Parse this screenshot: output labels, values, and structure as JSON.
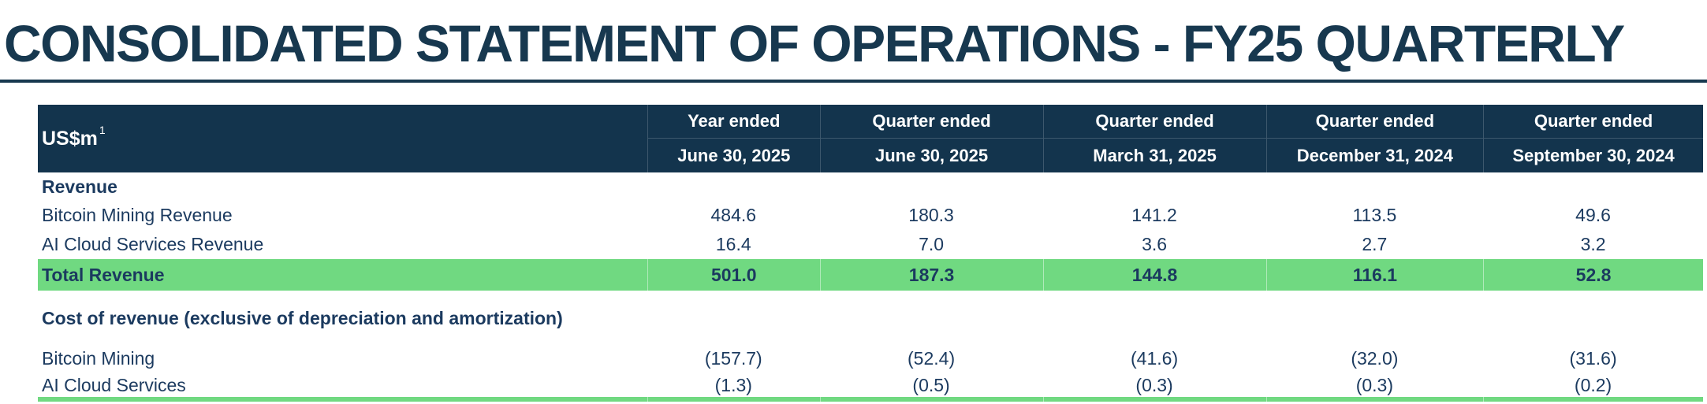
{
  "page_title": "CONSOLIDATED STATEMENT OF OPERATIONS - FY25 QUARTERLY",
  "colors": {
    "navy_header_background": "#13344d",
    "navy_title_text": "#17384f",
    "body_text_navy": "#1b3a5f",
    "highlight_green": "#70d981"
  },
  "table": {
    "unit_label": "US$m",
    "unit_footnote": "1",
    "columns": [
      {
        "line1": "Year ended",
        "line2": "June 30, 2025"
      },
      {
        "line1": "Quarter ended",
        "line2": "June 30, 2025"
      },
      {
        "line1": "Quarter ended",
        "line2": "March 31, 2025"
      },
      {
        "line1": "Quarter ended",
        "line2": "December 31, 2024"
      },
      {
        "line1": "Quarter ended",
        "line2": "September 30, 2024"
      }
    ],
    "rows": [
      {
        "type": "section",
        "name": "section-revenue",
        "label": "Revenue"
      },
      {
        "type": "data",
        "name": "row-bitcoin-mining-revenue",
        "label": "Bitcoin Mining Revenue",
        "values": [
          "484.6",
          "180.3",
          "141.2",
          "113.5",
          "49.6"
        ]
      },
      {
        "type": "data",
        "name": "row-ai-cloud-services-revenue",
        "label": "AI Cloud Services Revenue",
        "values": [
          "16.4",
          "7.0",
          "3.6",
          "2.7",
          "3.2"
        ]
      },
      {
        "type": "total",
        "name": "row-total-revenue",
        "label": "Total Revenue",
        "values": [
          "501.0",
          "187.3",
          "144.8",
          "116.1",
          "52.8"
        ]
      },
      {
        "type": "section",
        "name": "section-cost-of-revenue",
        "gap": "lg",
        "label": "Cost of revenue (exclusive of depreciation and amortization)"
      },
      {
        "type": "data",
        "name": "row-bitcoin-mining-cost",
        "label": "Bitcoin Mining",
        "gap": "sm",
        "values": [
          "(157.7)",
          "(52.4)",
          "(41.6)",
          "(32.0)",
          "(31.6)"
        ]
      },
      {
        "type": "data",
        "name": "row-ai-cloud-services-cost",
        "label": "AI Cloud Services",
        "compact": true,
        "values": [
          "(1.3)",
          "(0.5)",
          "(0.3)",
          "(0.3)",
          "(0.2)"
        ]
      },
      {
        "type": "bar",
        "name": "row-next-total-partially-visible",
        "label": "",
        "values": [
          "",
          "",
          "",
          "",
          ""
        ]
      }
    ]
  }
}
